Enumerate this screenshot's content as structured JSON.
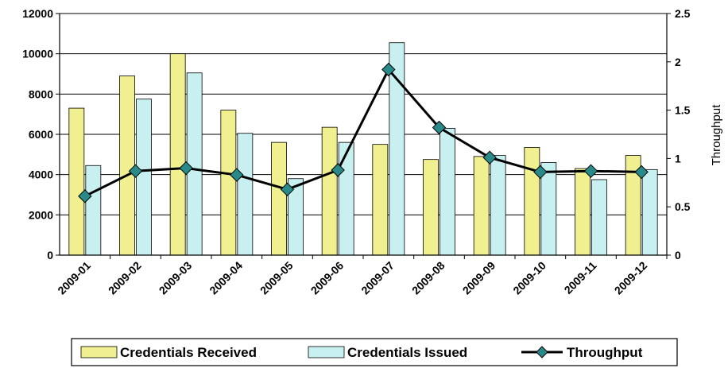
{
  "chart_data": {
    "type": "bar",
    "categories": [
      "2009-01",
      "2009-02",
      "2009-03",
      "2009-04",
      "2009-05",
      "2009-06",
      "2009-07",
      "2009-08",
      "2009-09",
      "2009-10",
      "2009-11",
      "2009-12"
    ],
    "series": [
      {
        "name": "Credentials Received",
        "type": "bar",
        "axis": "left",
        "color": "#f0f090",
        "values": [
          7300,
          8900,
          10000,
          7200,
          5600,
          6350,
          5500,
          4750,
          4900,
          5350,
          4300,
          4950
        ]
      },
      {
        "name": "Credentials Issued",
        "type": "bar",
        "axis": "left",
        "color": "#c8f0f0",
        "values": [
          4450,
          7750,
          9050,
          6050,
          3800,
          5600,
          10550,
          6300,
          4950,
          4600,
          3750,
          4250
        ]
      },
      {
        "name": "Throughput",
        "type": "line",
        "axis": "right",
        "color": "#000000",
        "marker_color": "#2a8a8a",
        "values": [
          0.61,
          0.87,
          0.9,
          0.83,
          0.68,
          0.88,
          1.92,
          1.32,
          1.01,
          0.86,
          0.87,
          0.86
        ]
      }
    ],
    "y_left": {
      "min": 0,
      "max": 12000,
      "ticks": [
        0,
        2000,
        4000,
        6000,
        8000,
        10000,
        12000
      ],
      "label": ""
    },
    "y_right": {
      "min": 0,
      "max": 2.5,
      "ticks": [
        0,
        0.5,
        1,
        1.5,
        2,
        2.5
      ],
      "tick_labels": [
        "0",
        "0.5",
        "1",
        "1.5",
        "2",
        "2.5"
      ],
      "label": "Throughput"
    },
    "grid": true,
    "legend": "bottom"
  }
}
